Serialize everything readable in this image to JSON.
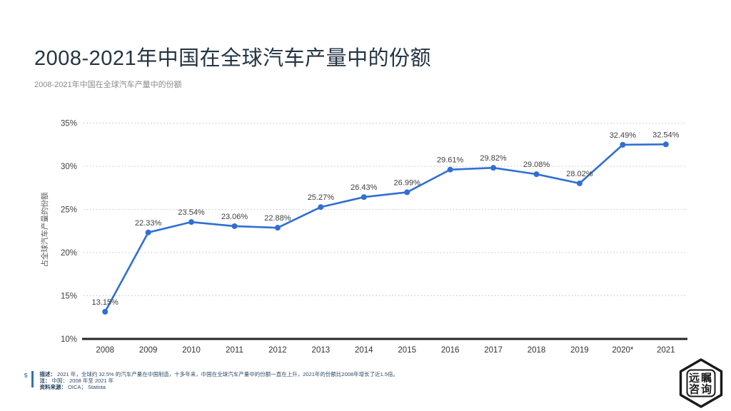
{
  "header": {
    "title": "2008-2021年中国在全球汽车产量中的份额",
    "subtitle": "2008-2021年中国在全球汽车产量中的份额"
  },
  "chart_data": {
    "type": "line",
    "title": "2008-2021年中国在全球汽车产量中的份额",
    "categories": [
      "2008",
      "2009",
      "2010",
      "2011",
      "2012",
      "2013",
      "2014",
      "2015",
      "2016",
      "2017",
      "2018",
      "2019",
      "2020*",
      "2021"
    ],
    "values": [
      13.15,
      22.33,
      23.54,
      23.06,
      22.88,
      25.27,
      26.43,
      26.99,
      29.61,
      29.82,
      29.08,
      28.02,
      32.49,
      32.54
    ],
    "data_labels": [
      "13.15%",
      "22.33%",
      "23.54%",
      "23.06%",
      "22.88%",
      "25.27%",
      "26.43%",
      "26.99%",
      "29.61%",
      "29.82%",
      "29.08%",
      "28.02%",
      "32.49%",
      "32.54%"
    ],
    "xlabel": "",
    "ylabel": "占全球汽车产量的份额",
    "ylim": [
      10,
      35
    ],
    "y_tick_step": 5,
    "y_tick_labels": [
      "10%",
      "15%",
      "20%",
      "25%",
      "30%",
      "35%"
    ],
    "grid": "horizontal-dotted",
    "legend": "none"
  },
  "footer": {
    "page_number": "5",
    "description_label": "描述：",
    "description_text": "2021 年，全球约 32.5% 的汽车产量在中国制造，十多年来，中国在全球汽车产量中的份额一直在上升，2021年的份额比2008年增长了近1.5倍。",
    "note_label": "注：",
    "note_text": "中国： 2008 年至 2021 年",
    "source_label": "资料来源：",
    "source_text": "OICA； Statista"
  },
  "logo": {
    "line1": "远瞩",
    "line2": "咨询"
  },
  "colors": {
    "line_blue": "#306fd3",
    "accent_blue": "#2e74b5",
    "grid_gray": "#c3c3c3",
    "axis_dark": "#262626",
    "tick_text": "#3f3f3f",
    "label_text": "#3f3f3f",
    "ylabel_text": "#595959",
    "title_text": "#243442"
  }
}
